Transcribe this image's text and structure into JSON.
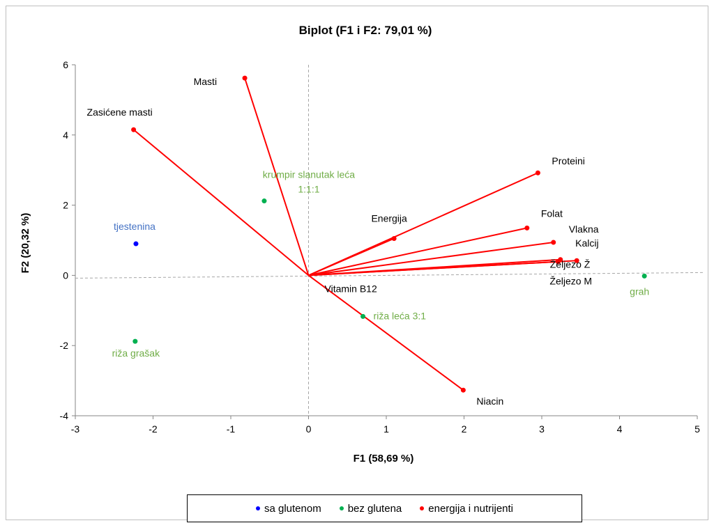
{
  "chart_data": {
    "type": "scatter",
    "title": "Biplot (F1 i F2: 79,01 %)",
    "xlabel": "F1 (58,69 %)",
    "ylabel": "F2 (20,32 %)",
    "xlim": [
      -3,
      5
    ],
    "ylim": [
      -4,
      6
    ],
    "xticks": [
      "-3",
      "-2",
      "-1",
      "0",
      "1",
      "2",
      "3",
      "4",
      "5"
    ],
    "yticks": [
      "-4",
      "-2",
      "0",
      "2",
      "4",
      "6"
    ],
    "grid": false,
    "legend_position": "bottom",
    "colors": {
      "sa_glutenom": "#0000ff",
      "bez_glutena": "#00b050",
      "variables": "#ff0000",
      "obs_label_green": "#70ad47",
      "obs_label_blue": "#4472c4"
    },
    "series": [
      {
        "name": "sa glutenom",
        "points": [
          {
            "label": "tjestenina",
            "x": -2.22,
            "y": 0.9
          }
        ]
      },
      {
        "name": "bez glutena",
        "points": [
          {
            "label": "krumpir slanutak leća\n1:1:1",
            "x": -0.57,
            "y": 2.12
          },
          {
            "label": "riža grašak",
            "x": -2.23,
            "y": -1.88
          },
          {
            "label": "riža leća 3:1",
            "x": 0.7,
            "y": -1.17
          },
          {
            "label": "grah",
            "x": 4.32,
            "y": -0.02
          }
        ]
      },
      {
        "name": "energija i nutrijenti",
        "vectors": [
          {
            "label": "Masti",
            "x": -0.82,
            "y": 5.62
          },
          {
            "label": "Zasićene masti",
            "x": -2.25,
            "y": 4.15
          },
          {
            "label": "Proteini",
            "x": 2.95,
            "y": 2.92
          },
          {
            "label": "Energija",
            "x": 1.1,
            "y": 1.05
          },
          {
            "label": "Folat",
            "x": 2.81,
            "y": 1.35
          },
          {
            "label": "Vlakna",
            "x": 3.15,
            "y": 0.94
          },
          {
            "label": "Kalcij",
            "x": 3.45,
            "y": 0.42
          },
          {
            "label": "Željezo Ž",
            "x": 3.24,
            "y": 0.45
          },
          {
            "label": "Željezo M",
            "x": 3.21,
            "y": 0.39
          },
          {
            "label": "Vitamin B12",
            "x": 0.0,
            "y": 0.0
          },
          {
            "label": "Niacin",
            "x": 1.99,
            "y": -3.27
          }
        ]
      }
    ]
  }
}
